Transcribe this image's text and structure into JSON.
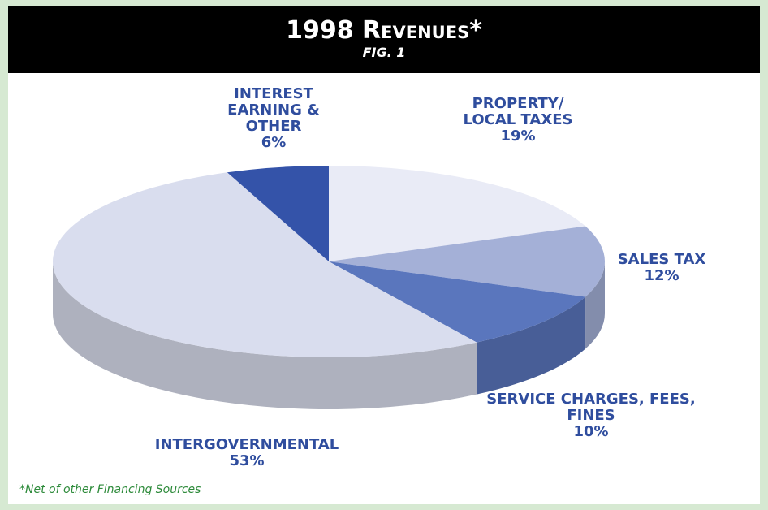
{
  "chart_data": {
    "type": "pie3d",
    "title": "1998 Revenues*",
    "subtitle": "FIG. 1",
    "categories": [
      "PROPERTY/ LOCAL TAXES",
      "SALES TAX",
      "SERVICE CHARGES, FEES, FINES",
      "INTERGOVERNMENTAL",
      "INTEREST EARNING & OTHER"
    ],
    "values": [
      19,
      12,
      10,
      53,
      6
    ],
    "value_labels": [
      "19%",
      "12%",
      "10%",
      "53%",
      "6%"
    ],
    "colors": [
      "#e9ebf6",
      "#a4b0d7",
      "#5a76bd",
      "#d9ddee",
      "#3453a9"
    ],
    "footnote": "*Net of other Financing Sources"
  }
}
